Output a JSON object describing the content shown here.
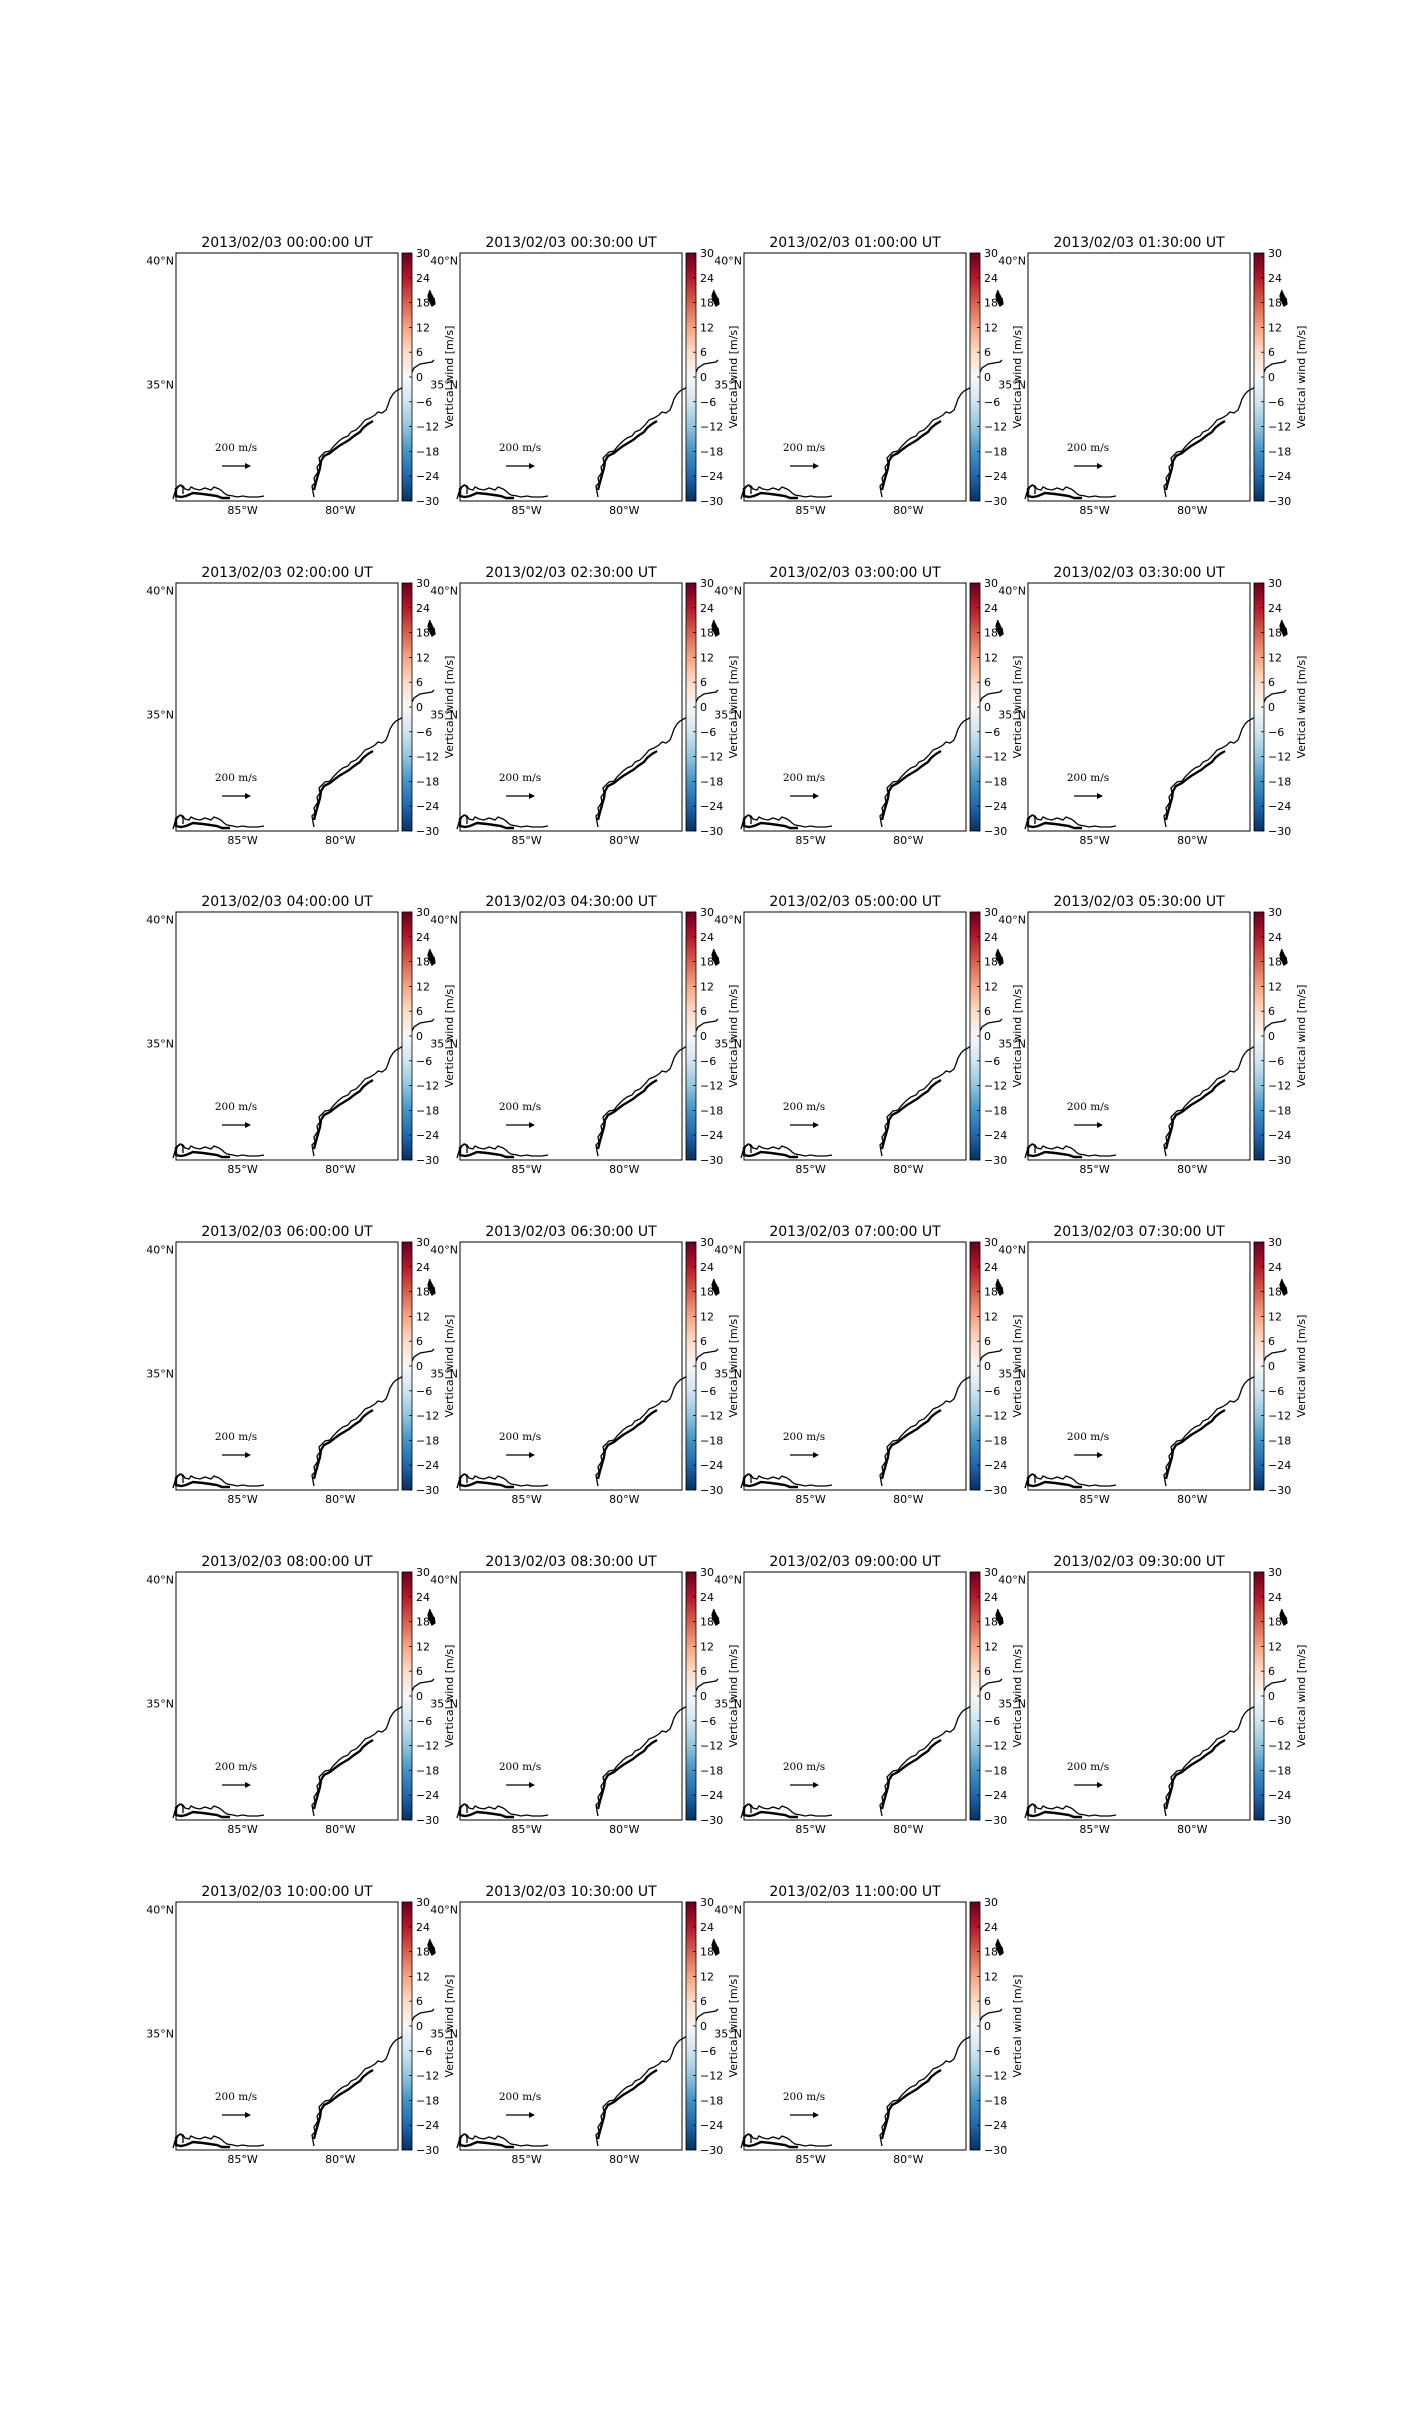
{
  "figure": {
    "colormap_colors": [
      "#053061",
      "#2166ac",
      "#4393c3",
      "#92c5de",
      "#d1e5f0",
      "#f7f7f7",
      "#fddbc7",
      "#f4a582",
      "#d6604d",
      "#b2182b",
      "#67001f"
    ],
    "coastline_color": "#000000"
  },
  "colorbar": {
    "label": "Vertical wind [m/s]",
    "range": [
      -30,
      30
    ],
    "ticks": [
      "30",
      "24",
      "18",
      "12",
      "6",
      "0",
      "−6",
      "−12",
      "−18",
      "−24",
      "−30"
    ]
  },
  "map_axes": {
    "lon_labels": [
      "85°W",
      "80°W"
    ],
    "lat_labels": [
      "40°N",
      "35°N"
    ]
  },
  "vector_key": {
    "label": "200 m/s",
    "magnitude": 200
  },
  "panels": [
    {
      "title": "2013/02/03 00:00:00 UT"
    },
    {
      "title": "2013/02/03 00:30:00 UT"
    },
    {
      "title": "2013/02/03 01:00:00 UT"
    },
    {
      "title": "2013/02/03 01:30:00 UT"
    },
    {
      "title": "2013/02/03 02:00:00 UT"
    },
    {
      "title": "2013/02/03 02:30:00 UT"
    },
    {
      "title": "2013/02/03 03:00:00 UT"
    },
    {
      "title": "2013/02/03 03:30:00 UT"
    },
    {
      "title": "2013/02/03 04:00:00 UT"
    },
    {
      "title": "2013/02/03 04:30:00 UT"
    },
    {
      "title": "2013/02/03 05:00:00 UT"
    },
    {
      "title": "2013/02/03 05:30:00 UT"
    },
    {
      "title": "2013/02/03 06:00:00 UT"
    },
    {
      "title": "2013/02/03 06:30:00 UT"
    },
    {
      "title": "2013/02/03 07:00:00 UT"
    },
    {
      "title": "2013/02/03 07:30:00 UT"
    },
    {
      "title": "2013/02/03 08:00:00 UT"
    },
    {
      "title": "2013/02/03 08:30:00 UT"
    },
    {
      "title": "2013/02/03 09:00:00 UT"
    },
    {
      "title": "2013/02/03 09:30:00 UT"
    },
    {
      "title": "2013/02/03 10:00:00 UT"
    },
    {
      "title": "2013/02/03 10:30:00 UT"
    },
    {
      "title": "2013/02/03 11:00:00 UT"
    }
  ]
}
